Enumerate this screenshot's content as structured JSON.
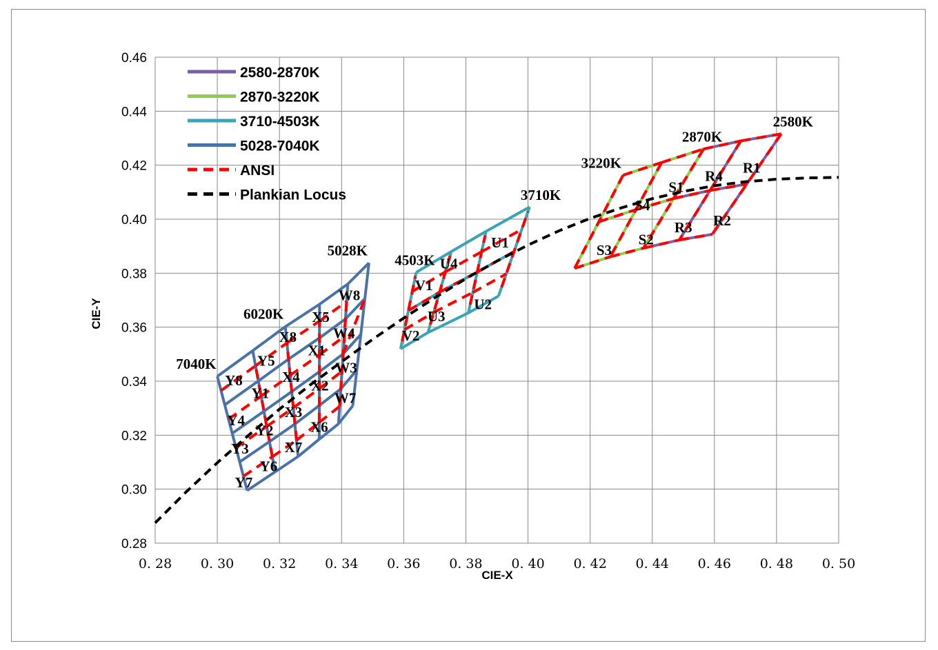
{
  "chart_data": {
    "type": "line",
    "title": "",
    "xlabel": "CIE-X",
    "ylabel": "CIE-Y",
    "xlim": [
      0.28,
      0.5
    ],
    "ylim": [
      0.28,
      0.46
    ],
    "x_ticks": [
      "0. 28",
      "0. 30",
      "0. 32",
      "0. 34",
      "0. 36",
      "0. 38",
      "0. 40",
      "0. 42",
      "0. 44",
      "0. 46",
      "0. 48",
      "0. 50"
    ],
    "y_ticks": [
      "0.28",
      "0.30",
      "0.32",
      "0.34",
      "0.36",
      "0.38",
      "0.40",
      "0.42",
      "0.44",
      "0.46"
    ],
    "grid": true,
    "legend_position": "top-left",
    "legend": [
      {
        "label": "2580-2870K",
        "color": "#7b5ea7",
        "style": "solid"
      },
      {
        "label": "2870-3220K",
        "color": "#8fcf45",
        "style": "solid"
      },
      {
        "label": "3710-4503K",
        "color": "#3aa3b5",
        "style": "solid"
      },
      {
        "label": "5028-7040K",
        "color": "#4a72a8",
        "style": "solid"
      },
      {
        "label": "ANSI",
        "color": "#ff0000",
        "style": "dashed"
      },
      {
        "label": "Plankian Locus",
        "color": "#000000",
        "style": "dashed"
      }
    ],
    "planckian_locus": [
      [
        0.28,
        0.2875
      ],
      [
        0.29,
        0.299
      ],
      [
        0.3,
        0.3098
      ],
      [
        0.31,
        0.3199
      ],
      [
        0.32,
        0.3296
      ],
      [
        0.33,
        0.3387
      ],
      [
        0.34,
        0.3472
      ],
      [
        0.35,
        0.3555
      ],
      [
        0.36,
        0.3634
      ],
      [
        0.37,
        0.3709
      ],
      [
        0.38,
        0.378
      ],
      [
        0.39,
        0.3845
      ],
      [
        0.4,
        0.3904
      ],
      [
        0.41,
        0.3957
      ],
      [
        0.42,
        0.4003
      ],
      [
        0.43,
        0.4042
      ],
      [
        0.44,
        0.4076
      ],
      [
        0.45,
        0.4103
      ],
      [
        0.46,
        0.4124
      ],
      [
        0.47,
        0.4139
      ],
      [
        0.48,
        0.4148
      ],
      [
        0.49,
        0.4153
      ],
      [
        0.5,
        0.4155
      ]
    ],
    "bin_groups": [
      {
        "name": "5028-7040K",
        "color": "#4a72a8",
        "top": [
          [
            0.3,
            0.3418
          ],
          [
            0.3114,
            0.3513
          ],
          [
            0.3219,
            0.3602
          ],
          [
            0.3329,
            0.3685
          ],
          [
            0.342,
            0.376
          ],
          [
            0.3488,
            0.3838
          ]
        ],
        "bottom": [
          [
            0.3096,
            0.2995
          ],
          [
            0.3186,
            0.3064
          ],
          [
            0.326,
            0.3121
          ],
          [
            0.3328,
            0.3185
          ],
          [
            0.339,
            0.3242
          ],
          [
            0.3436,
            0.3309
          ]
        ],
        "top_ansi": [
          [
            0.3185,
            0.349
          ],
          [
            0.3316,
            0.3589
          ],
          [
            0.3446,
            0.3688
          ]
        ],
        "bottom_ansi": [
          [
            0.31,
            0.313
          ],
          [
            0.3207,
            0.32
          ],
          [
            0.3328,
            0.3295
          ],
          [
            0.3426,
            0.3418
          ]
        ]
      },
      {
        "name": "3710-4503K",
        "color": "#3aa3b5",
        "top": [
          [
            0.364,
            0.3803
          ],
          [
            0.3753,
            0.388
          ],
          [
            0.3865,
            0.3955
          ],
          [
            0.4005,
            0.4045
          ]
        ],
        "bottom": [
          [
            0.359,
            0.352
          ],
          [
            0.3678,
            0.358
          ],
          [
            0.3808,
            0.3653
          ],
          [
            0.3905,
            0.3715
          ]
        ]
      },
      {
        "name": "2580-3220K",
        "color_top": "#8fcf45",
        "color_bottom": "#8fcf45",
        "color_warm": "#7b5ea7",
        "top": [
          [
            0.4306,
            0.4163
          ],
          [
            0.443,
            0.421
          ],
          [
            0.4565,
            0.426
          ],
          [
            0.4685,
            0.429
          ],
          [
            0.4815,
            0.4316
          ]
        ],
        "bottom": [
          [
            0.415,
            0.3818
          ],
          [
            0.4265,
            0.3861
          ],
          [
            0.4372,
            0.3893
          ],
          [
            0.4487,
            0.3923
          ],
          [
            0.4593,
            0.3944
          ]
        ]
      }
    ],
    "annotations": [
      {
        "text": "7040K",
        "x": 0.3001,
        "y": 0.342
      },
      {
        "text": "6020K",
        "x": 0.3218,
        "y": 0.3605
      },
      {
        "text": "5028K",
        "x": 0.3488,
        "y": 0.384
      },
      {
        "text": "4503K",
        "x": 0.364,
        "y": 0.3805
      },
      {
        "text": "3710K",
        "x": 0.4003,
        "y": 0.4046
      },
      {
        "text": "3220K",
        "x": 0.4305,
        "y": 0.4165
      },
      {
        "text": "2870K",
        "x": 0.4565,
        "y": 0.4262
      },
      {
        "text": "2580K",
        "x": 0.4815,
        "y": 0.4318
      },
      {
        "text": "Y8",
        "x": 0.3053,
        "y": 0.3403
      },
      {
        "text": "Y5",
        "x": 0.3157,
        "y": 0.3475
      },
      {
        "text": "Y1",
        "x": 0.3138,
        "y": 0.3355
      },
      {
        "text": "Y4",
        "x": 0.306,
        "y": 0.3255
      },
      {
        "text": "Y2",
        "x": 0.3152,
        "y": 0.3218
      },
      {
        "text": "Y3",
        "x": 0.3073,
        "y": 0.315
      },
      {
        "text": "Y6",
        "x": 0.3165,
        "y": 0.3085
      },
      {
        "text": "Y7",
        "x": 0.3085,
        "y": 0.3025
      },
      {
        "text": "X8",
        "x": 0.3227,
        "y": 0.3563
      },
      {
        "text": "X5",
        "x": 0.3333,
        "y": 0.3637
      },
      {
        "text": "X1",
        "x": 0.332,
        "y": 0.3513
      },
      {
        "text": "X4",
        "x": 0.3237,
        "y": 0.3415
      },
      {
        "text": "X2",
        "x": 0.333,
        "y": 0.3384
      },
      {
        "text": "X3",
        "x": 0.3245,
        "y": 0.3285
      },
      {
        "text": "X6",
        "x": 0.3328,
        "y": 0.323
      },
      {
        "text": "X7",
        "x": 0.3245,
        "y": 0.3155
      },
      {
        "text": "W8",
        "x": 0.3425,
        "y": 0.3718
      },
      {
        "text": "W4",
        "x": 0.3408,
        "y": 0.3578
      },
      {
        "text": "W3",
        "x": 0.3415,
        "y": 0.345
      },
      {
        "text": "W7",
        "x": 0.3412,
        "y": 0.3338
      },
      {
        "text": "U1",
        "x": 0.391,
        "y": 0.3913
      },
      {
        "text": "U4",
        "x": 0.3745,
        "y": 0.3835
      },
      {
        "text": "V1",
        "x": 0.3665,
        "y": 0.3755
      },
      {
        "text": "U2",
        "x": 0.3855,
        "y": 0.3685
      },
      {
        "text": "U3",
        "x": 0.3705,
        "y": 0.364
      },
      {
        "text": "V2",
        "x": 0.3623,
        "y": 0.3568
      },
      {
        "text": "S4",
        "x": 0.4368,
        "y": 0.4051
      },
      {
        "text": "S1",
        "x": 0.4477,
        "y": 0.4119
      },
      {
        "text": "R4",
        "x": 0.4598,
        "y": 0.416
      },
      {
        "text": "R1",
        "x": 0.472,
        "y": 0.419
      },
      {
        "text": "S3",
        "x": 0.4245,
        "y": 0.3885
      },
      {
        "text": "S2",
        "x": 0.438,
        "y": 0.3925
      },
      {
        "text": "R3",
        "x": 0.45,
        "y": 0.397
      },
      {
        "text": "R2",
        "x": 0.4625,
        "y": 0.3995
      }
    ]
  }
}
